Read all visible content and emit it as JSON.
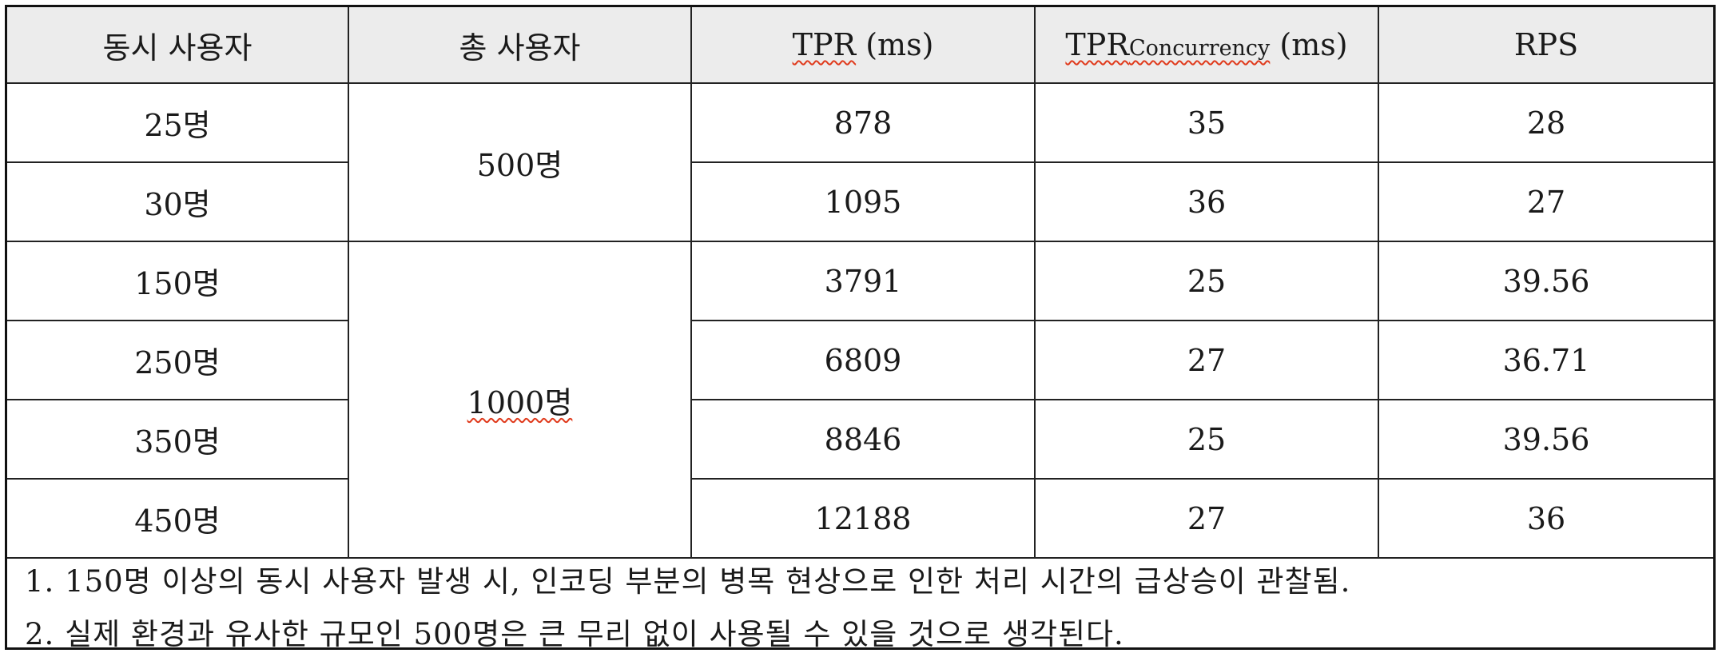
{
  "table": {
    "headers": {
      "concurrent": "동시 사용자",
      "total": "총 사용자",
      "tpr_main": "TPR",
      "tpr_unit": "(ms)",
      "tprc_main": "TPR",
      "tprc_sub": "Concurrency",
      "tprc_unit": "(ms)",
      "rps": "RPS"
    },
    "groups": [
      {
        "total": "500명"
      },
      {
        "total": "1000명"
      }
    ],
    "rows": [
      {
        "concurrent": "25명",
        "tpr": "878",
        "tprc": "35",
        "rps": "28"
      },
      {
        "concurrent": "30명",
        "tpr": "1095",
        "tprc": "36",
        "rps": "27"
      },
      {
        "concurrent": "150명",
        "tpr": "3791",
        "tprc": "25",
        "rps": "39.56"
      },
      {
        "concurrent": "250명",
        "tpr": "6809",
        "tprc": "27",
        "rps": "36.71"
      },
      {
        "concurrent": "350명",
        "tpr": "8846",
        "tprc": "25",
        "rps": "39.56"
      },
      {
        "concurrent": "450명",
        "tpr": "12188",
        "tprc": "27",
        "rps": "36"
      }
    ]
  },
  "notes": [
    "1. 150명 이상의 동시 사용자 발생 시, 인코딩 부분의 병목 현상으로 인한 처리 시간의 급상승이 관찰됨.",
    "2. 실제 환경과 유사한 규모인 500명은 큰 무리 없이 사용될 수 있을 것으로 생각된다."
  ]
}
